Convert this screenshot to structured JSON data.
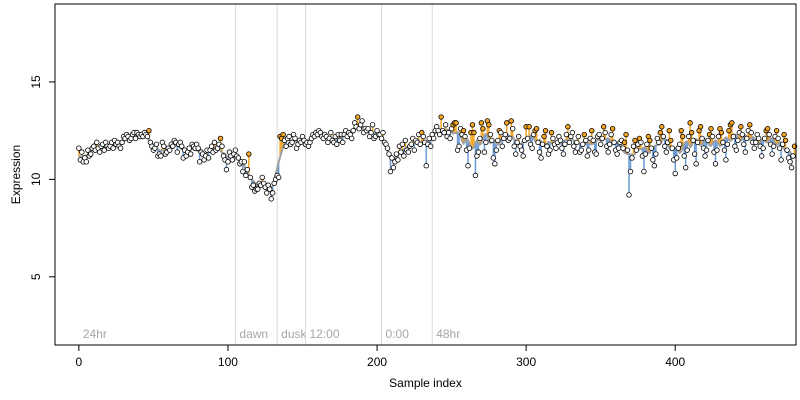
{
  "chart_data": {
    "type": "line",
    "title": "",
    "xlabel": "Sample index",
    "ylabel": "Expression",
    "xlim": [
      -16,
      481
    ],
    "ylim": [
      1.5,
      19
    ],
    "x_ticks": [
      0,
      100,
      200,
      300,
      400
    ],
    "y_ticks": [
      5,
      10,
      15
    ],
    "grid": false,
    "legend": "none",
    "colors": {
      "line": "#a0a0a0",
      "above_fill": "#f5a623",
      "below_fill": "#6b9bd8",
      "point_stroke": "#000000",
      "point_fill_default": "#ffffff",
      "point_fill_highlight": "#f5a623",
      "region_line": "#d8d8d8",
      "region_text": "#a6a6a6"
    },
    "regions": [
      {
        "label": "24hr",
        "x": 0
      },
      {
        "label": "dawn",
        "x": 105
      },
      {
        "label": "dusk",
        "x": 133
      },
      {
        "label": "12:00",
        "x": 152
      },
      {
        "label": "0:00",
        "x": 203
      },
      {
        "label": "48hr",
        "x": 237
      }
    ],
    "series": [
      {
        "values": [
          11.6,
          11.0,
          11.4,
          10.9,
          11.1,
          10.9,
          11.5,
          11.2,
          11.3,
          11.6,
          11.7,
          11.5,
          11.9,
          11.6,
          11.4,
          11.7,
          11.8,
          11.5,
          11.9,
          11.7,
          11.6,
          11.7,
          11.9,
          11.6,
          12.0,
          11.8,
          11.9,
          11.7,
          11.6,
          11.9,
          12.2,
          12.1,
          12.3,
          12.2,
          12.0,
          12.1,
          12.3,
          12.4,
          12.1,
          12.4,
          12.3,
          12.2,
          12.3,
          12.2,
          12.4,
          12.3,
          12.2,
          12.5,
          11.9,
          11.7,
          11.5,
          11.6,
          11.8,
          11.2,
          11.3,
          11.2,
          11.9,
          11.7,
          11.3,
          11.4,
          11.6,
          11.5,
          11.8,
          11.7,
          12.0,
          11.9,
          11.4,
          11.8,
          11.9,
          11.7,
          11.1,
          11.5,
          11.2,
          11.4,
          11.6,
          11.3,
          11.8,
          11.7,
          11.6,
          11.8,
          11.6,
          10.9,
          11.4,
          11.3,
          11.0,
          11.2,
          11.5,
          11.1,
          11.5,
          11.7,
          11.4,
          11.9,
          11.5,
          11.6,
          11.8,
          12.1,
          11.7,
          11.2,
          11.0,
          10.5,
          10.9,
          11.4,
          11.2,
          11.0,
          11.3,
          11.5,
          11.2,
          11.1,
          10.8,
          10.9,
          10.4,
          10.9,
          10.2,
          10.5,
          11.3,
          10.1,
          9.6,
          9.7,
          9.4,
          9.5,
          9.5,
          9.8,
          9.7,
          10.1,
          9.8,
          9.6,
          9.3,
          9.7,
          9.5,
          9.0,
          9.3,
          9.8,
          10.0,
          10.2,
          10.1,
          12.2,
          12.1,
          12.3,
          12.0,
          11.7,
          12.1,
          12.2,
          11.8,
          11.9,
          12.3,
          12.1,
          11.6,
          11.8,
          12.0,
          11.9,
          12.2,
          12.0,
          11.8,
          11.9,
          11.7,
          11.9,
          12.1,
          12.3,
          12.2,
          12.4,
          12.3,
          12.5,
          12.4,
          12.2,
          12.1,
          12.3,
          12.2,
          11.9,
          12.1,
          12.4,
          12.0,
          11.9,
          12.2,
          11.8,
          12.3,
          12.0,
          12.3,
          11.9,
          12.3,
          12.5,
          12.2,
          12.4,
          12.3,
          12.1,
          12.5,
          12.9,
          12.7,
          13.2,
          12.6,
          12.8,
          13.0,
          12.4,
          12.6,
          12.5,
          12.6,
          12.2,
          12.4,
          12.8,
          12.1,
          12.2,
          12.5,
          12.3,
          12.3,
          12.1,
          12.4,
          11.9,
          11.8,
          11.6,
          11.3,
          10.4,
          11.1,
          10.6,
          10.9,
          11.3,
          11.0,
          11.7,
          11.4,
          11.8,
          11.2,
          12.0,
          11.5,
          11.4,
          11.7,
          11.8,
          12.1,
          11.5,
          12.0,
          11.9,
          12.3,
          11.8,
          12.4,
          12.2,
          11.9,
          10.7,
          11.8,
          12.1,
          11.7,
          12.3,
          12.1,
          12.5,
          12.7,
          12.5,
          12.3,
          13.2,
          12.5,
          12.4,
          12.8,
          12.2,
          12.4,
          12.1,
          12.6,
          12.8,
          12.9,
          12.9,
          11.5,
          11.7,
          12.6,
          12.3,
          12.5,
          12.2,
          11.5,
          10.7,
          11.6,
          12.4,
          12.8,
          12.4,
          10.2,
          11.2,
          11.4,
          12.1,
          12.9,
          12.6,
          11.4,
          11.9,
          13.0,
          12.8,
          12.3,
          12.0,
          11.1,
          10.8,
          11.5,
          12.0,
          12.5,
          12.4,
          11.7,
          12.1,
          12.3,
          12.9,
          12.0,
          12.1,
          13.0,
          12.6,
          11.7,
          11.3,
          11.9,
          12.2,
          11.7,
          11.5,
          11.2,
          12.0,
          12.7,
          12.1,
          12.7,
          11.8,
          11.6,
          12.3,
          12.5,
          12.6,
          11.9,
          11.4,
          11.1,
          11.8,
          12.2,
          12.5,
          11.7,
          11.3,
          11.5,
          12.4,
          12.1,
          11.8,
          11.6,
          11.9,
          12.2,
          12.0,
          11.6,
          11.3,
          11.8,
          12.3,
          12.7,
          11.9,
          12.2,
          12.4,
          11.7,
          11.4,
          11.9,
          12.2,
          11.4,
          11.5,
          11.8,
          12.3,
          12.0,
          11.2,
          11.5,
          12.1,
          12.5,
          12.0,
          11.4,
          11.3,
          12.2,
          12.3,
          11.8,
          12.1,
          12.7,
          12.4,
          11.7,
          11.4,
          11.8,
          12.3,
          12.6,
          11.9,
          11.5,
          11.3,
          11.6,
          11.9,
          12.0,
          11.6,
          11.9,
          12.3,
          11.5,
          9.2,
          10.4,
          11.1,
          11.7,
          12.0,
          11.5,
          11.8,
          12.1,
          11.9,
          11.2,
          10.4,
          11.3,
          11.8,
          12.2,
          12.0,
          11.6,
          11.0,
          10.7,
          11.3,
          12.1,
          11.9,
          12.4,
          12.7,
          12.2,
          11.7,
          11.4,
          11.9,
          12.5,
          12.0,
          11.6,
          11.0,
          10.3,
          11.1,
          11.6,
          11.8,
          12.5,
          12.2,
          11.2,
          10.6,
          11.5,
          12.2,
          12.9,
          12.4,
          12.0,
          11.3,
          10.8,
          11.9,
          12.5,
          12.7,
          12.1,
          11.6,
          11.2,
          11.5,
          12.0,
          12.3,
          12.6,
          12.2,
          11.4,
          10.8,
          11.5,
          12.2,
          12.6,
          12.4,
          11.9,
          11.5,
          11.0,
          11.8,
          12.5,
          12.8,
          12.9,
          12.2,
          11.7,
          11.5,
          12.0,
          12.4,
          12.7,
          12.3,
          11.8,
          11.4,
          12.1,
          12.5,
          12.8,
          12.4,
          11.9,
          11.6,
          11.9,
          12.3,
          12.1,
          11.7,
          11.2,
          11.6,
          12.1,
          12.5,
          12.6,
          12.3,
          11.8,
          11.3,
          11.7,
          12.2,
          12.5,
          12.1,
          11.6,
          11.0,
          11.8,
          12.3,
          12.0,
          11.5,
          11.1,
          10.9,
          10.6,
          11.2,
          11.7
        ]
      }
    ]
  }
}
